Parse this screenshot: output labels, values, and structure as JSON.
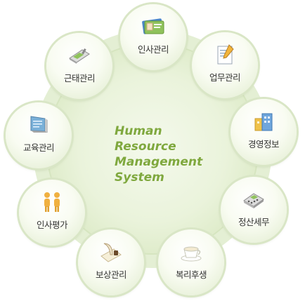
{
  "title": {
    "line1": "Human",
    "line2": "Resource",
    "line3": "Management",
    "line4": "System"
  },
  "colors": {
    "title": "#7fa83e",
    "ring": "#d9e6c6",
    "center_fill": "#eef5e0",
    "label": "#333333"
  },
  "menu": [
    {
      "label": "인사관리",
      "icon": "id-card-icon"
    },
    {
      "label": "업무관리",
      "icon": "document-icon"
    },
    {
      "label": "경영정보",
      "icon": "building-icon"
    },
    {
      "label": "정산세무",
      "icon": "calculator-icon"
    },
    {
      "label": "복리후생",
      "icon": "teacup-icon"
    },
    {
      "label": "보상관리",
      "icon": "quill-icon"
    },
    {
      "label": "인사평가",
      "icon": "people-icon"
    },
    {
      "label": "교육관리",
      "icon": "monitor-icon"
    },
    {
      "label": "근태관리",
      "icon": "phone-icon"
    }
  ]
}
